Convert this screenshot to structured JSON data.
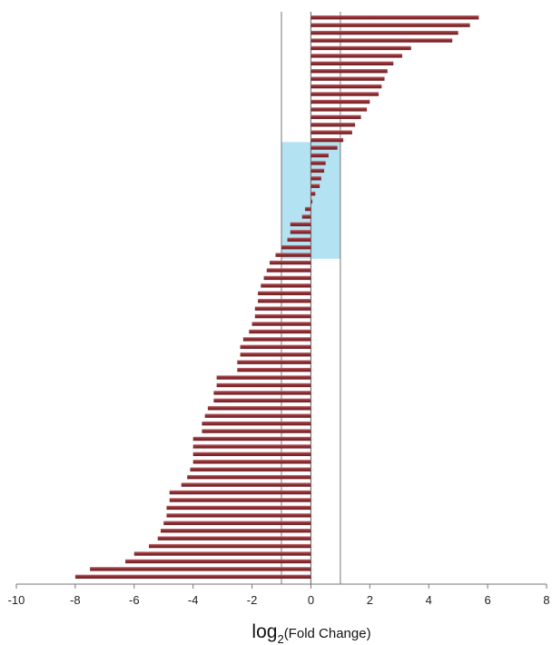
{
  "chart_data": {
    "type": "bar",
    "orientation": "horizontal",
    "values": [
      5.7,
      5.4,
      5.0,
      4.8,
      3.4,
      3.1,
      2.8,
      2.6,
      2.5,
      2.4,
      2.3,
      2.0,
      1.9,
      1.7,
      1.5,
      1.4,
      1.1,
      0.9,
      0.6,
      0.5,
      0.45,
      0.35,
      0.3,
      0.15,
      0.05,
      -0.2,
      -0.3,
      -0.7,
      -0.7,
      -0.8,
      -1.0,
      -1.2,
      -1.4,
      -1.5,
      -1.6,
      -1.7,
      -1.8,
      -1.8,
      -1.9,
      -1.9,
      -2.0,
      -2.1,
      -2.3,
      -2.4,
      -2.4,
      -2.5,
      -2.5,
      -3.2,
      -3.2,
      -3.3,
      -3.3,
      -3.5,
      -3.6,
      -3.7,
      -3.7,
      -4.0,
      -4.0,
      -4.0,
      -4.0,
      -4.1,
      -4.2,
      -4.4,
      -4.8,
      -4.8,
      -4.9,
      -4.9,
      -5.0,
      -5.1,
      -5.2,
      -5.5,
      -6.0,
      -6.3,
      -7.5,
      -8.0
    ],
    "xlim": [
      -10,
      8
    ],
    "xticks": [
      "-10",
      "-8",
      "-6",
      "-4",
      "-2",
      "0",
      "2",
      "4",
      "6",
      "8"
    ],
    "xtick_values": [
      -10,
      -8,
      -6,
      -4,
      -2,
      0,
      2,
      4,
      6,
      8
    ],
    "xlabel": {
      "main": "log",
      "subscript": "2",
      "suffix": "(Fold Change)"
    },
    "reference_lines": [
      -1,
      0,
      1
    ],
    "highlight": {
      "x_range": [
        -1,
        1
      ],
      "bar_index_start": 17,
      "bar_index_end": 31
    },
    "grid": false,
    "colors": {
      "bar": "#8b2e33",
      "bar_highlight": "#b35055",
      "highlight_fill": "#b3e2f2",
      "axis": "#777777",
      "reference_line": "#777777"
    }
  }
}
